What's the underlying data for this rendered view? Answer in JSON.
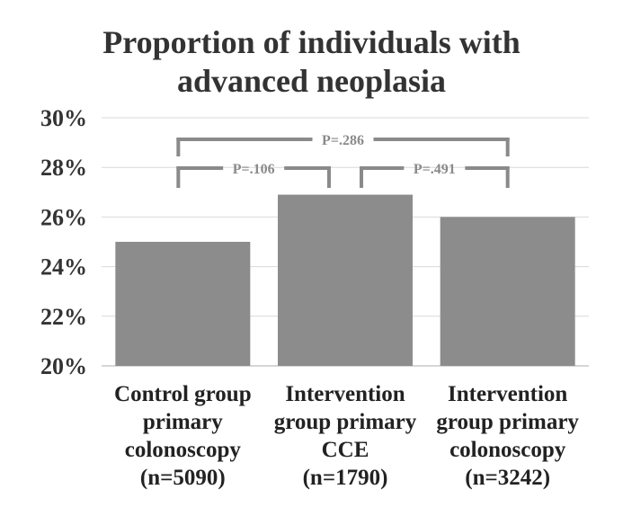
{
  "chart_data": {
    "type": "bar",
    "title_lines": [
      "Proportion of individuals with",
      "advanced neoplasia"
    ],
    "categories": [
      [
        "Control group",
        "primary",
        "colonoscopy",
        "(n=5090)"
      ],
      [
        "Intervention",
        "group primary",
        "CCE",
        "(n=1790)"
      ],
      [
        "Intervention",
        "group primary",
        "colonoscopy",
        "(n=3242)"
      ]
    ],
    "values": [
      25.0,
      26.9,
      26.0
    ],
    "ylim": [
      20,
      30
    ],
    "yticks": [
      20,
      22,
      24,
      26,
      28,
      30
    ],
    "ytick_labels": [
      "20%",
      "22%",
      "24%",
      "26%",
      "28%",
      "30%"
    ],
    "grid": true,
    "legend": "none",
    "bar_color": "#8c8c8c",
    "bracket_color": "#8a8a8a",
    "comparisons": [
      {
        "from": 0,
        "to": 2,
        "label": "P=.286"
      },
      {
        "from": 0,
        "to": 1,
        "label": "P=.106"
      },
      {
        "from": 1,
        "to": 2,
        "label": "P=.491"
      }
    ]
  }
}
